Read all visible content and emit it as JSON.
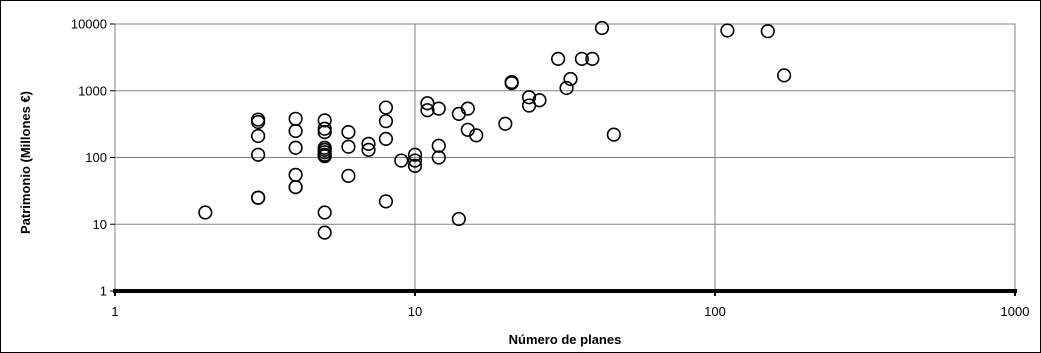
{
  "chart_data": {
    "type": "scatter",
    "title": "",
    "xlabel": "Número de planes",
    "ylabel": "Patrimonio (Millones €)",
    "xscale": "log",
    "yscale": "log",
    "xlim": [
      1,
      1000
    ],
    "ylim": [
      1,
      10000
    ],
    "xticks": [
      "1",
      "10",
      "100",
      "1000"
    ],
    "yticks": [
      "1",
      "10",
      "100",
      "1000",
      "10000"
    ],
    "grid": true,
    "legend": "none",
    "marker": "open-circle",
    "x": [
      2,
      3,
      3,
      3,
      3,
      3,
      3,
      4,
      4,
      4,
      4,
      4,
      4,
      5,
      5,
      5,
      5,
      5,
      5,
      5,
      5,
      5,
      5,
      5,
      6,
      6,
      6,
      7,
      7,
      8,
      8,
      8,
      8,
      9,
      10,
      10,
      10,
      11,
      11,
      12,
      12,
      12,
      14,
      14,
      15,
      15,
      16,
      20,
      21,
      21,
      24,
      24,
      26,
      30,
      32,
      33,
      36,
      39,
      42,
      46,
      110,
      150,
      170
    ],
    "y": [
      15,
      370,
      340,
      210,
      110,
      25,
      25,
      380,
      250,
      140,
      55,
      36,
      36,
      360,
      270,
      240,
      140,
      130,
      105,
      15,
      7.5,
      120,
      110,
      105,
      240,
      145,
      53,
      160,
      130,
      560,
      350,
      190,
      22,
      90,
      110,
      75,
      90,
      650,
      510,
      540,
      150,
      100,
      450,
      12,
      260,
      540,
      215,
      320,
      1300,
      1350,
      600,
      800,
      720,
      3000,
      1100,
      1500,
      3000,
      3000,
      8700,
      220,
      8000,
      7800,
      1700
    ]
  },
  "colors": {
    "marker_stroke": "#000000",
    "grid": "#808080",
    "background": "#ffffff"
  }
}
